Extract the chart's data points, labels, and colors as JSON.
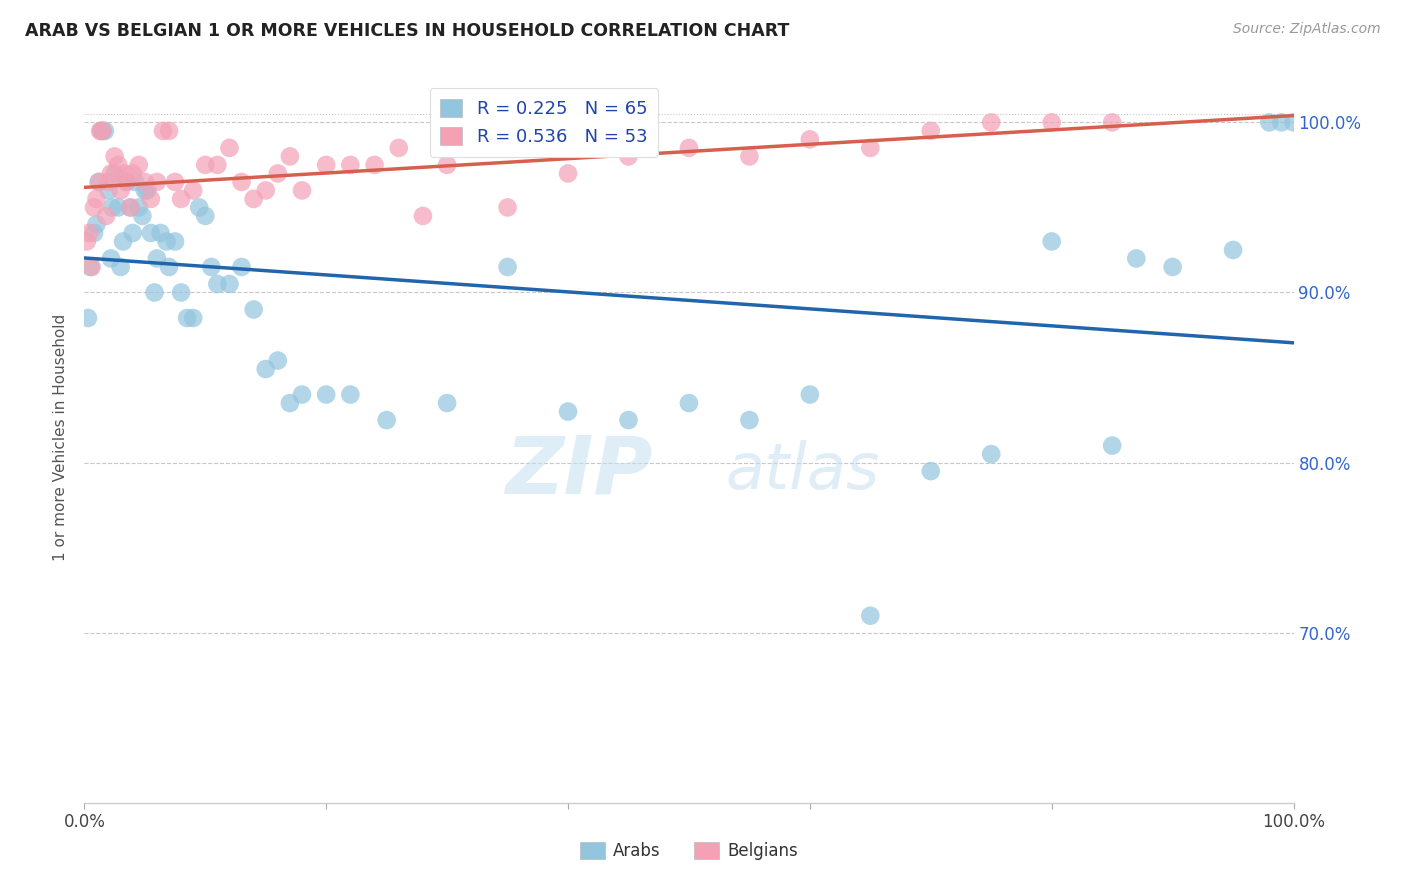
{
  "title": "ARAB VS BELGIAN 1 OR MORE VEHICLES IN HOUSEHOLD CORRELATION CHART",
  "source": "Source: ZipAtlas.com",
  "ylabel": "1 or more Vehicles in Household",
  "legend_arab": "Arabs",
  "legend_belgian": "Belgians",
  "R_arab": 0.225,
  "N_arab": 65,
  "R_belgian": 0.536,
  "N_belgian": 53,
  "color_arab": "#92c5de",
  "color_belgian": "#f4a0b5",
  "color_arab_line": "#2166ac",
  "color_belgian_line": "#d6604d",
  "watermark_zip": "ZIP",
  "watermark_atlas": "atlas",
  "arab_x": [
    0.3,
    0.5,
    0.8,
    1.0,
    1.2,
    1.4,
    1.5,
    1.7,
    2.0,
    2.2,
    2.3,
    2.5,
    2.8,
    3.0,
    3.2,
    3.5,
    3.8,
    4.0,
    4.2,
    4.5,
    4.8,
    5.0,
    5.2,
    5.5,
    5.8,
    6.0,
    6.3,
    6.8,
    7.0,
    7.5,
    8.0,
    8.5,
    9.0,
    9.5,
    10.0,
    10.5,
    11.0,
    12.0,
    13.0,
    14.0,
    15.0,
    16.0,
    17.0,
    18.0,
    20.0,
    22.0,
    25.0,
    30.0,
    35.0,
    40.0,
    45.0,
    50.0,
    55.0,
    60.0,
    65.0,
    70.0,
    75.0,
    80.0,
    85.0,
    87.0,
    90.0,
    95.0,
    98.0,
    99.0,
    100.0
  ],
  "arab_y": [
    88.5,
    91.5,
    93.5,
    94.0,
    96.5,
    99.5,
    99.5,
    99.5,
    96.0,
    92.0,
    95.0,
    97.0,
    95.0,
    91.5,
    93.0,
    96.5,
    95.0,
    93.5,
    96.5,
    95.0,
    94.5,
    96.0,
    96.0,
    93.5,
    90.0,
    92.0,
    93.5,
    93.0,
    91.5,
    93.0,
    90.0,
    88.5,
    88.5,
    95.0,
    94.5,
    91.5,
    90.5,
    90.5,
    91.5,
    89.0,
    85.5,
    86.0,
    83.5,
    84.0,
    84.0,
    84.0,
    82.5,
    83.5,
    91.5,
    83.0,
    82.5,
    83.5,
    82.5,
    84.0,
    71.0,
    79.5,
    80.5,
    93.0,
    81.0,
    92.0,
    91.5,
    92.5,
    100.0,
    100.0,
    100.0
  ],
  "belgian_x": [
    0.2,
    0.4,
    0.6,
    0.8,
    1.0,
    1.2,
    1.3,
    1.5,
    1.8,
    2.0,
    2.2,
    2.5,
    2.8,
    3.0,
    3.3,
    3.5,
    3.8,
    4.0,
    4.5,
    5.0,
    5.5,
    6.0,
    6.5,
    7.0,
    7.5,
    8.0,
    9.0,
    10.0,
    11.0,
    12.0,
    13.0,
    14.0,
    15.0,
    16.0,
    17.0,
    18.0,
    20.0,
    22.0,
    24.0,
    26.0,
    28.0,
    30.0,
    35.0,
    40.0,
    45.0,
    50.0,
    55.0,
    60.0,
    65.0,
    70.0,
    75.0,
    80.0,
    85.0
  ],
  "belgian_y": [
    93.0,
    93.5,
    91.5,
    95.0,
    95.5,
    96.5,
    99.5,
    99.5,
    94.5,
    96.5,
    97.0,
    98.0,
    97.5,
    96.0,
    97.0,
    96.5,
    95.0,
    97.0,
    97.5,
    96.5,
    95.5,
    96.5,
    99.5,
    99.5,
    96.5,
    95.5,
    96.0,
    97.5,
    97.5,
    98.5,
    96.5,
    95.5,
    96.0,
    97.0,
    98.0,
    96.0,
    97.5,
    97.5,
    97.5,
    98.5,
    94.5,
    97.5,
    95.0,
    97.0,
    98.0,
    98.5,
    98.0,
    99.0,
    98.5,
    99.5,
    100.0,
    100.0,
    100.0
  ]
}
